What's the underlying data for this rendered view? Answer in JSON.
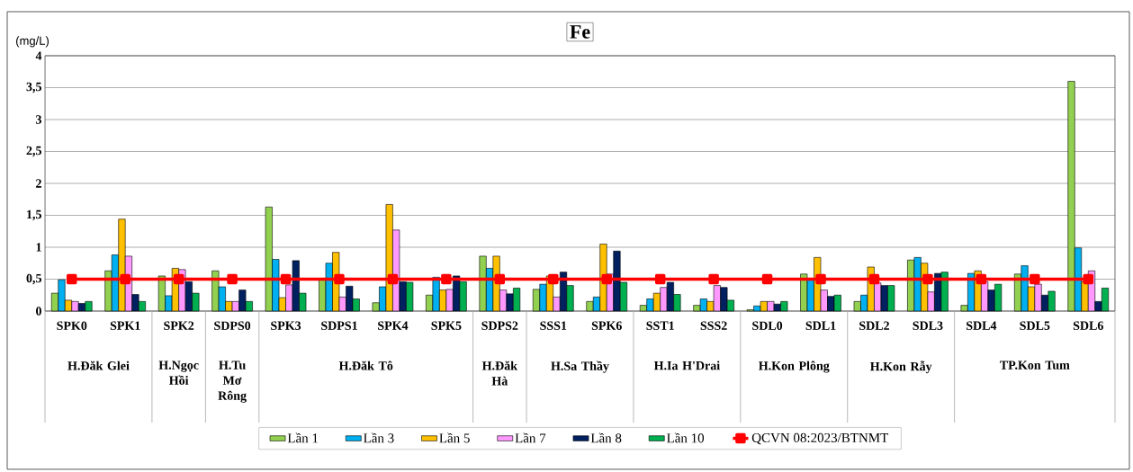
{
  "chart_data": {
    "type": "bar",
    "title": "Fe",
    "ylabel": "(mg/L)",
    "categories": [
      "SPK0",
      "SPK1",
      "SPK2",
      "SDPS0",
      "SPK3",
      "SDPS1",
      "SPK4",
      "SPK5",
      "SDPS2",
      "SSS1",
      "SPK6",
      "SST1",
      "SSS2",
      "SDL0",
      "SDL1",
      "SDL2",
      "SDL3",
      "SDL4",
      "SDL5",
      "SDL6"
    ],
    "series": [
      {
        "name": "Lần 1",
        "color": "#92d050",
        "values": [
          0.28,
          0.63,
          0.55,
          0.63,
          1.63,
          0.5,
          0.13,
          0.25,
          0.86,
          0.34,
          0.15,
          0.09,
          0.09,
          0.02,
          0.58,
          0.15,
          0.8,
          0.09,
          0.58,
          3.6
        ]
      },
      {
        "name": "Lần 3",
        "color": "#00b0f0",
        "values": [
          0.49,
          0.88,
          0.24,
          0.38,
          0.81,
          0.75,
          0.38,
          0.53,
          0.67,
          0.42,
          0.22,
          0.19,
          0.19,
          0.08,
          0.5,
          0.25,
          0.84,
          0.59,
          0.71,
          0.99
        ]
      },
      {
        "name": "Lần 5",
        "color": "#ffc000",
        "values": [
          0.17,
          1.44,
          0.67,
          0.15,
          0.21,
          0.92,
          1.67,
          0.33,
          0.86,
          0.55,
          1.05,
          0.28,
          0.15,
          0.15,
          0.84,
          0.69,
          0.75,
          0.63,
          0.38,
          0.46
        ]
      },
      {
        "name": "Lần 7",
        "color": "#ff99ff",
        "values": [
          0.15,
          0.86,
          0.65,
          0.15,
          0.41,
          0.22,
          1.27,
          0.34,
          0.33,
          0.22,
          0.58,
          0.37,
          0.4,
          0.15,
          0.33,
          0.44,
          0.3,
          0.46,
          0.42,
          0.63
        ]
      },
      {
        "name": "Lần 8",
        "color": "#002060",
        "values": [
          0.12,
          0.26,
          0.46,
          0.33,
          0.79,
          0.39,
          0.46,
          0.55,
          0.27,
          0.61,
          0.94,
          0.45,
          0.37,
          0.11,
          0.23,
          0.4,
          0.59,
          0.33,
          0.25,
          0.15
        ]
      },
      {
        "name": "Lần 10",
        "color": "#00b050",
        "values": [
          0.15,
          0.15,
          0.28,
          0.15,
          0.28,
          0.19,
          0.45,
          0.46,
          0.36,
          0.4,
          0.45,
          0.26,
          0.17,
          0.15,
          0.25,
          0.4,
          0.61,
          0.42,
          0.31,
          0.36
        ]
      },
      {
        "name": "QCVN 08:2023/BTNMT",
        "type": "line",
        "marker": "square",
        "color": "#ff0000",
        "values": [
          0.5,
          0.5,
          0.5,
          0.5,
          0.5,
          0.5,
          0.5,
          0.5,
          0.5,
          0.5,
          0.5,
          0.5,
          0.5,
          0.5,
          0.5,
          0.5,
          0.5,
          0.5,
          0.5,
          0.5
        ]
      }
    ],
    "ylim": [
      0,
      4
    ],
    "yticks": [
      0,
      {
        "value": 0.5,
        "label": "0,5"
      },
      1,
      {
        "value": 1.5,
        "label": "1,5"
      },
      2,
      {
        "value": 2.5,
        "label": "2,5"
      },
      3,
      {
        "value": 3.5,
        "label": "3,5"
      },
      4
    ],
    "grid": "y",
    "legend": "bottom",
    "annotations": [
      "H.Đăk Glei",
      "H.Ngọc Hồi",
      "H.Tu Mơ Rông",
      "H.Đăk Tô",
      "H.Đăk Hà",
      "H.Sa Thầy",
      "H.Ia H'Drai",
      "H.Kon Plông",
      "H.Kon Rẫy",
      "TP.Kon Tum"
    ]
  }
}
